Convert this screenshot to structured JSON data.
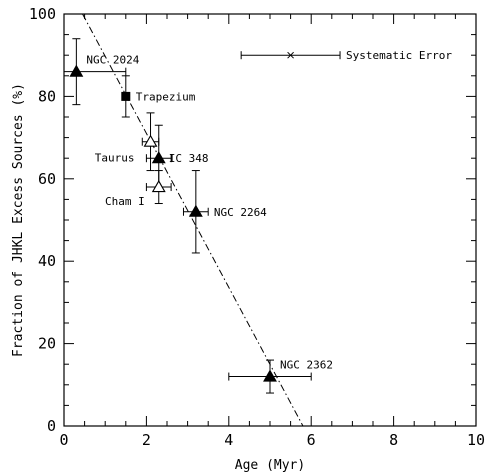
{
  "chart_data": {
    "type": "scatter",
    "title": "",
    "xlabel": "Age (Myr)",
    "ylabel": "Fraction of JHKL Excess Sources (%)",
    "xlim": [
      0,
      10
    ],
    "ylim": [
      0,
      100
    ],
    "xticks": [
      0,
      2,
      4,
      6,
      8,
      10
    ],
    "yticks": [
      0,
      20,
      40,
      60,
      80,
      100
    ],
    "grid": false,
    "points": [
      {
        "label": "NGC 2024",
        "x": 0.3,
        "y": 86,
        "xerr": [
          0.3,
          1.2
        ],
        "yerr": [
          8,
          8
        ],
        "marker": "filled-triangle"
      },
      {
        "label": "Trapezium",
        "x": 1.5,
        "y": 80,
        "xerr": [
          0,
          0
        ],
        "yerr": [
          5,
          5
        ],
        "marker": "filled-square"
      },
      {
        "label": "Taurus",
        "x": 2.1,
        "y": 69,
        "xerr": [
          0.2,
          0.2
        ],
        "yerr": [
          7,
          7
        ],
        "marker": "open-triangle"
      },
      {
        "label": "IC 348",
        "x": 2.3,
        "y": 65,
        "xerr": [
          0.3,
          0.3
        ],
        "yerr": [
          8,
          8
        ],
        "marker": "filled-triangle"
      },
      {
        "label": "Cham I",
        "x": 2.3,
        "y": 58,
        "xerr": [
          0.3,
          0.3
        ],
        "yerr": [
          4,
          4
        ],
        "marker": "open-triangle"
      },
      {
        "label": "NGC 2264",
        "x": 3.2,
        "y": 52,
        "xerr": [
          0.3,
          0.3
        ],
        "yerr": [
          10,
          10
        ],
        "marker": "filled-triangle"
      },
      {
        "label": "NGC 2362",
        "x": 5.0,
        "y": 12,
        "xerr": [
          1.0,
          1.0
        ],
        "yerr": [
          4,
          4
        ],
        "marker": "filled-triangle"
      }
    ],
    "systematic_error": {
      "label": "Systematic Error",
      "x": 5.5,
      "y": 90,
      "xerr": [
        1.2,
        1.2
      ]
    },
    "fit_line": {
      "style": "dash-dot",
      "points": [
        [
          0.45,
          100
        ],
        [
          5.8,
          0
        ]
      ]
    }
  }
}
